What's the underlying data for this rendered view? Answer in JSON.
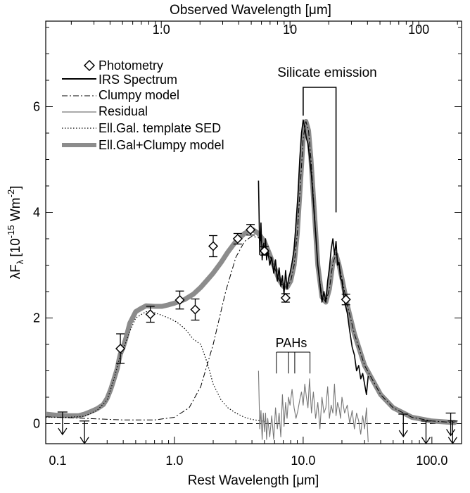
{
  "chart_data": {
    "type": "line",
    "xscale": "log",
    "xlim": [
      0.1,
      170
    ],
    "ylim": [
      -0.38,
      7.62
    ],
    "x_ticks_bottom": [
      {
        "value": 0.1,
        "label": "0.1"
      },
      {
        "value": 1.0,
        "label": "1.0"
      },
      {
        "value": 10.0,
        "label": "10.0"
      },
      {
        "value": 100.0,
        "label": "100.0"
      }
    ],
    "x_ticks_top": [
      {
        "value": 0.79,
        "label": "1.0"
      },
      {
        "value": 7.9,
        "label": "10"
      },
      {
        "value": 79,
        "label": "100"
      }
    ],
    "y_ticks": [
      {
        "value": 0,
        "label": "0"
      },
      {
        "value": 2,
        "label": "2"
      },
      {
        "value": 4,
        "label": "4"
      },
      {
        "value": 6,
        "label": "6"
      }
    ],
    "xlabel": "Rest Wavelength [μm]",
    "xlabel_top": "Observed Wavelength [μm]",
    "ylabel": "λF",
    "ylabel_sub": "λ",
    "ylabel_units": "[10",
    "ylabel_exp": "-15",
    "ylabel_units2": " Wm",
    "ylabel_exp2": "-2",
    "ylabel_close": "]",
    "legend_position": "top-left",
    "legend": [
      {
        "label": "Photometry",
        "style": "diamond"
      },
      {
        "label": "IRS Spectrum",
        "style": "solid-thick"
      },
      {
        "label": "Clumpy model",
        "style": "dash-dot"
      },
      {
        "label": "Residual",
        "style": "solid-thin"
      },
      {
        "label": "Ell.Gal. template SED",
        "style": "dotted"
      },
      {
        "label": "Ell.Gal+Clumpy model",
        "style": "gray-thick"
      }
    ],
    "annotations": {
      "silicate": "Silicate emission",
      "pahs": "PAHs"
    },
    "silicate_bracket_x": [
      10.0,
      18.0
    ],
    "pah_lines_x": [
      6.2,
      7.7,
      8.6,
      11.3
    ],
    "photometry": [
      {
        "x": 0.38,
        "y": 1.42,
        "err": 0.28
      },
      {
        "x": 0.65,
        "y": 2.07,
        "err": 0.15
      },
      {
        "x": 1.1,
        "y": 2.34,
        "err": 0.17
      },
      {
        "x": 1.45,
        "y": 2.16,
        "err": 0.2
      },
      {
        "x": 2.0,
        "y": 3.36,
        "err": 0.2
      },
      {
        "x": 3.1,
        "y": 3.5,
        "err": 0.1
      },
      {
        "x": 3.9,
        "y": 3.67,
        "err": 0.1
      },
      {
        "x": 5.0,
        "y": 3.27,
        "err": 0.08
      },
      {
        "x": 7.3,
        "y": 2.38,
        "err": 0.08
      },
      {
        "x": 21.5,
        "y": 2.35,
        "err": 0.1
      }
    ],
    "upper_limits": [
      {
        "x": 0.135,
        "y": 0.22
      },
      {
        "x": 0.2,
        "y": 0.05
      },
      {
        "x": 60,
        "y": 0.18
      },
      {
        "x": 90,
        "y": 0.05
      },
      {
        "x": 140,
        "y": 0.2
      },
      {
        "x": 145,
        "y": 0.05
      }
    ],
    "series": [
      {
        "name": "Ell.Gal+Clumpy model",
        "x": [
          0.1,
          0.12,
          0.15,
          0.18,
          0.2,
          0.22,
          0.25,
          0.28,
          0.3,
          0.32,
          0.34,
          0.36,
          0.37,
          0.38,
          0.4,
          0.42,
          0.45,
          0.5,
          0.55,
          0.6,
          0.7,
          0.8,
          0.9,
          1.0,
          1.2,
          1.4,
          1.6,
          1.8,
          2.0,
          2.3,
          2.6,
          3.0,
          3.5,
          4.0,
          4.5,
          5.0,
          5.5,
          6.0,
          6.5,
          7.0,
          7.5,
          8.0,
          8.5,
          9.0,
          9.5,
          10.0,
          10.5,
          11.0,
          11.5,
          12.0,
          13.0,
          14.0,
          15.0,
          16.0,
          17.0,
          18.0,
          19.0,
          20.0,
          22.0,
          25.0,
          30.0,
          40.0,
          50.0,
          70.0,
          100.0,
          150.0
        ],
        "y": [
          0.18,
          0.16,
          0.15,
          0.15,
          0.18,
          0.22,
          0.28,
          0.36,
          0.48,
          0.65,
          0.85,
          1.05,
          1.2,
          1.32,
          1.45,
          1.62,
          1.9,
          2.12,
          2.18,
          2.23,
          2.22,
          2.22,
          2.25,
          2.28,
          2.35,
          2.45,
          2.58,
          2.72,
          2.85,
          3.05,
          3.25,
          3.45,
          3.6,
          3.68,
          3.6,
          3.45,
          3.2,
          2.95,
          2.72,
          2.6,
          2.58,
          2.7,
          3.0,
          3.6,
          4.5,
          5.4,
          5.72,
          5.55,
          5.0,
          4.3,
          3.0,
          2.4,
          2.3,
          2.55,
          3.05,
          3.2,
          3.0,
          2.75,
          2.25,
          1.7,
          1.1,
          0.55,
          0.3,
          0.12,
          0.05,
          0.02
        ]
      },
      {
        "name": "Clumpy model",
        "x": [
          0.1,
          0.2,
          0.4,
          0.7,
          1.0,
          1.3,
          1.6,
          2.0,
          2.5,
          3.0,
          3.5,
          4.0,
          4.5,
          5.0,
          5.5,
          6.0,
          6.5,
          7.0,
          7.5,
          8.0,
          8.5,
          9.0,
          9.5,
          10.0,
          10.5,
          11.0,
          11.5,
          12.0,
          13.0,
          14.0,
          15.0,
          16.0,
          17.0,
          18.0,
          19.0,
          20.0,
          22.0,
          25.0,
          30.0,
          40.0,
          50.0,
          70.0,
          100.0,
          150.0
        ],
        "y": [
          0.13,
          0.1,
          0.07,
          0.07,
          0.12,
          0.3,
          0.7,
          1.5,
          2.5,
          3.15,
          3.45,
          3.55,
          3.52,
          3.4,
          3.18,
          2.95,
          2.72,
          2.6,
          2.58,
          2.7,
          3.0,
          3.6,
          4.5,
          5.4,
          5.72,
          5.55,
          5.0,
          4.3,
          3.0,
          2.4,
          2.3,
          2.55,
          3.05,
          3.2,
          3.0,
          2.75,
          2.25,
          1.7,
          1.1,
          0.55,
          0.3,
          0.12,
          0.05,
          0.02
        ]
      },
      {
        "name": "Ell.Gal. template SED",
        "x": [
          0.1,
          0.15,
          0.2,
          0.25,
          0.3,
          0.34,
          0.37,
          0.4,
          0.45,
          0.5,
          0.6,
          0.7,
          0.8,
          0.9,
          1.0,
          1.1,
          1.2,
          1.4,
          1.6,
          1.8,
          2.0,
          2.3,
          2.6,
          3.0,
          3.5,
          4.0,
          5.0
        ],
        "y": [
          0.12,
          0.12,
          0.14,
          0.25,
          0.45,
          0.85,
          1.2,
          1.4,
          1.75,
          2.0,
          2.12,
          2.1,
          2.05,
          2.0,
          1.95,
          1.88,
          1.8,
          1.6,
          1.5,
          1.15,
          0.75,
          0.45,
          0.3,
          0.2,
          0.12,
          0.08,
          0.04
        ]
      },
      {
        "name": "IRS Spectrum",
        "x": [
          4.5,
          4.6,
          4.7,
          4.8,
          4.9,
          5.0,
          5.1,
          5.2,
          5.3,
          5.5,
          5.7,
          5.9,
          6.1,
          6.3,
          6.5,
          6.7,
          6.9,
          7.1,
          7.3,
          7.5,
          7.7,
          7.9,
          8.2,
          8.5,
          8.8,
          9.1,
          9.4,
          9.7,
          10.0,
          10.3,
          10.6,
          10.9,
          11.2,
          11.6,
          12.0,
          12.5,
          13.0,
          13.5,
          14.0,
          14.5,
          15.0,
          15.5,
          16.0,
          16.5,
          17.0,
          17.5,
          18.0,
          18.5,
          19.0,
          19.5,
          20.0,
          21.0,
          22.0,
          23.0,
          24.0,
          25.0,
          26.0,
          27.0,
          28.0,
          29.0,
          30.0,
          31.0,
          32.0
        ],
        "y": [
          4.6,
          3.2,
          3.8,
          3.1,
          3.4,
          3.25,
          3.5,
          3.1,
          3.3,
          3.0,
          3.15,
          2.85,
          3.1,
          2.7,
          2.95,
          2.6,
          2.8,
          2.45,
          2.9,
          2.55,
          2.75,
          2.85,
          3.05,
          3.3,
          3.8,
          4.3,
          5.0,
          5.5,
          5.75,
          5.6,
          5.4,
          5.3,
          5.05,
          4.7,
          4.2,
          3.6,
          3.0,
          2.65,
          2.3,
          2.5,
          2.3,
          2.7,
          2.95,
          3.3,
          3.5,
          3.2,
          3.45,
          3.0,
          3.05,
          2.75,
          2.7,
          2.3,
          2.1,
          1.75,
          1.45,
          1.3,
          1.0,
          1.1,
          0.85,
          0.95,
          0.75,
          0.55,
          0.9
        ]
      },
      {
        "name": "Residual",
        "x": [
          4.5,
          4.6,
          4.7,
          4.8,
          4.9,
          5.0,
          5.1,
          5.2,
          5.3,
          5.5,
          5.7,
          5.9,
          6.1,
          6.3,
          6.5,
          6.7,
          6.9,
          7.1,
          7.3,
          7.5,
          7.7,
          7.9,
          8.2,
          8.5,
          8.8,
          9.1,
          9.4,
          9.7,
          10.0,
          10.3,
          10.6,
          10.9,
          11.2,
          11.6,
          12.0,
          12.5,
          13.0,
          13.5,
          14.0,
          14.5,
          15.0,
          15.5,
          16.0,
          16.5,
          17.0,
          17.5,
          18.0,
          18.5,
          19.0,
          19.5,
          20.0,
          21.0,
          22.0,
          23.0,
          24.0,
          25.0,
          26.0,
          27.0,
          28.0,
          29.0,
          30.0,
          31.0,
          32.0
        ],
        "y": [
          1.0,
          -0.1,
          0.25,
          -0.3,
          0.2,
          -0.15,
          0.2,
          -0.3,
          0.1,
          -0.25,
          0.15,
          -0.3,
          0.3,
          -0.1,
          0.2,
          -0.25,
          0.55,
          -0.05,
          0.4,
          0.1,
          0.5,
          0.35,
          0.65,
          0.3,
          0.1,
          0.25,
          0.45,
          0.6,
          0.35,
          0.75,
          0.5,
          0.3,
          0.85,
          0.2,
          0.6,
          0.1,
          0.4,
          -0.1,
          0.5,
          0.2,
          0.3,
          0.7,
          0.1,
          0.35,
          0.2,
          0.75,
          0.15,
          0.4,
          0.3,
          0.1,
          0.5,
          0.2,
          0.35,
          0.0,
          0.25,
          -0.1,
          0.2,
          0.05,
          -0.2,
          0.15,
          -0.1,
          0.3,
          -0.35
        ]
      }
    ]
  }
}
